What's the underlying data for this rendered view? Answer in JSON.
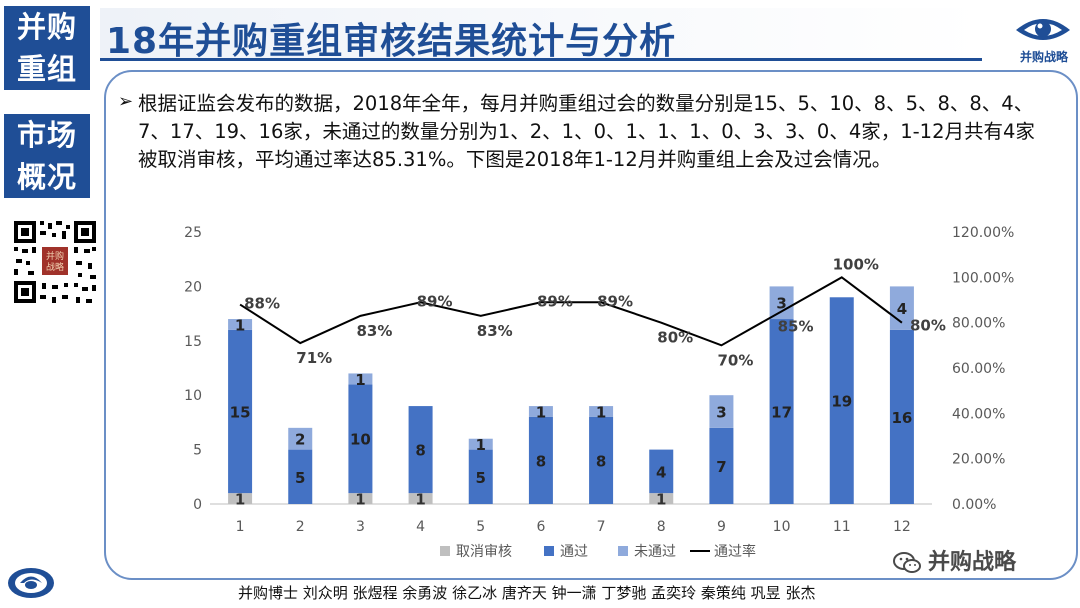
{
  "sidebar": {
    "block1": [
      "并购",
      "重组"
    ],
    "block2": [
      "市场",
      "概况"
    ],
    "qr_stamp": [
      "并购",
      "战略"
    ]
  },
  "header": {
    "title": "18年并购重组审核结果统计与分析",
    "brand": "并购战略"
  },
  "body_text": "根据证监会发布的数据，2018年全年，每月并购重组过会的数量分别是15、5、10、8、5、8、8、4、7、17、19、16家，未通过的数量分别为1、2、1、0、1、1、1、0、3、3、0、4家，1-12月共有4家被取消审核，平均通过率达85.31%。下图是2018年1-12月并购重组上会及过会情况。",
  "chart_data": {
    "type": "bar",
    "stacked": true,
    "categories": [
      "1",
      "2",
      "3",
      "4",
      "5",
      "6",
      "7",
      "8",
      "9",
      "10",
      "11",
      "12"
    ],
    "series": [
      {
        "name": "取消审核",
        "type": "bar",
        "color": "#bfbfbf",
        "values": [
          1,
          0,
          1,
          1,
          0,
          0,
          0,
          1,
          0,
          0,
          0,
          0
        ]
      },
      {
        "name": "通过",
        "type": "bar",
        "color": "#4472c4",
        "values": [
          15,
          5,
          10,
          8,
          5,
          8,
          8,
          4,
          7,
          17,
          19,
          16
        ]
      },
      {
        "name": "未通过",
        "type": "bar",
        "color": "#8faadc",
        "values": [
          1,
          2,
          1,
          0,
          1,
          1,
          1,
          0,
          3,
          3,
          0,
          4
        ]
      },
      {
        "name": "通过率",
        "type": "line",
        "axis": "right",
        "color": "#000000",
        "values": [
          0.88,
          0.71,
          0.83,
          0.89,
          0.83,
          0.89,
          0.89,
          0.8,
          0.7,
          0.85,
          1.0,
          0.8
        ],
        "labels": [
          "88%",
          "71%",
          "83%",
          "89%",
          "83%",
          "89%",
          "89%",
          "80%",
          "70%",
          "85%",
          "100%",
          "80%"
        ]
      }
    ],
    "ylim": [
      0,
      25
    ],
    "yticks": [
      "0",
      "5",
      "10",
      "15",
      "20",
      "25"
    ],
    "y2lim": [
      0,
      1.2
    ],
    "y2ticks": [
      "0.00%",
      "20.00%",
      "40.00%",
      "60.00%",
      "80.00%",
      "100.00%",
      "120.00%"
    ],
    "legend_position": "bottom"
  },
  "footer": {
    "credits": "并购博士 刘众明 张煜程 余勇波 徐乙冰 唐齐天 钟一潇 丁梦驰 孟奕玲 秦策纯 巩昱 张杰",
    "wechat": "并购战略"
  }
}
